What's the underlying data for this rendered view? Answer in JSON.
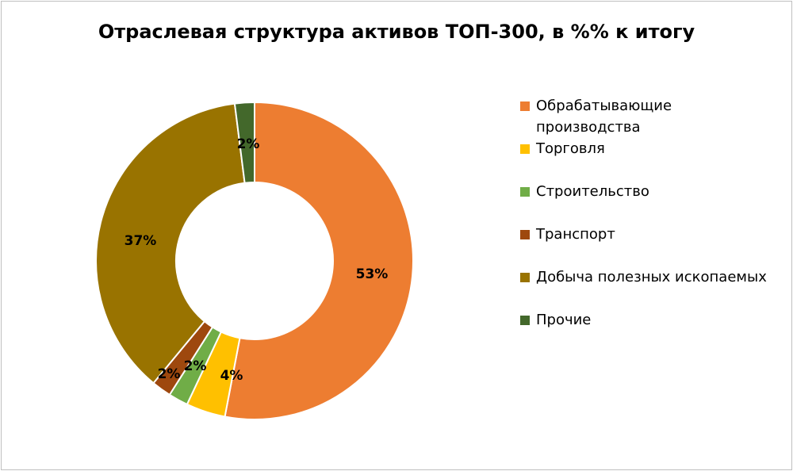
{
  "chart_data": {
    "type": "pie",
    "donut": true,
    "title": "Отраслевая структура активов ТОП-300, в %% к итогу",
    "categories": [
      "Обрабатывающие производства",
      "Торговля",
      "Строительство",
      "Транспорт",
      "Добыча полезных ископаемых",
      "Прочие"
    ],
    "values": [
      53,
      4,
      2,
      2,
      37,
      2
    ],
    "data_labels": [
      "53%",
      "4%",
      "2%",
      "2%",
      "37%",
      "2%"
    ],
    "colors": [
      "#ED7D31",
      "#FFC000",
      "#70AD47",
      "#9E480E",
      "#997300",
      "#43682B"
    ],
    "legend": {
      "position": "right",
      "items": [
        {
          "label": "Обрабатывающие производства",
          "color": "#ED7D31"
        },
        {
          "label": "Торговля",
          "color": "#FFC000"
        },
        {
          "label": "Строительство",
          "color": "#70AD47"
        },
        {
          "label": "Транспорт",
          "color": "#9E480E"
        },
        {
          "label": "Добыча полезных ископаемых",
          "color": "#997300"
        },
        {
          "label": "Прочие",
          "color": "#43682B"
        }
      ]
    }
  }
}
